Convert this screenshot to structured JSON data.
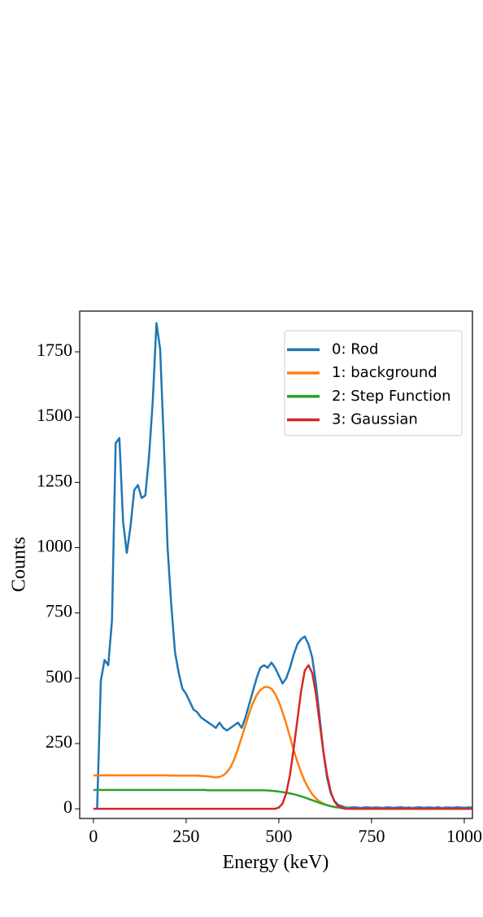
{
  "chart_data": {
    "type": "line",
    "xlabel": "Energy (keV)",
    "ylabel": "Counts",
    "x": [
      0,
      10,
      20,
      30,
      40,
      50,
      60,
      70,
      80,
      90,
      100,
      110,
      120,
      130,
      140,
      150,
      160,
      170,
      180,
      190,
      200,
      210,
      220,
      230,
      240,
      250,
      260,
      270,
      280,
      290,
      300,
      310,
      320,
      330,
      340,
      350,
      360,
      370,
      380,
      390,
      400,
      410,
      420,
      430,
      440,
      450,
      460,
      470,
      480,
      490,
      500,
      510,
      520,
      530,
      540,
      550,
      560,
      570,
      580,
      590,
      600,
      610,
      620,
      630,
      640,
      650,
      660,
      670,
      680,
      690,
      700,
      710,
      720,
      730,
      740,
      750,
      760,
      770,
      780,
      790,
      800,
      810,
      820,
      830,
      840,
      850,
      860,
      870,
      880,
      890,
      900,
      910,
      920,
      930,
      940,
      950,
      960,
      970,
      980,
      990,
      1000,
      1010,
      1020
    ],
    "series": [
      {
        "name": "0: Rod",
        "color": "#1f77b4",
        "values": [
          null,
          0,
          490,
          570,
          550,
          720,
          1400,
          1420,
          1100,
          980,
          1080,
          1220,
          1240,
          1190,
          1200,
          1350,
          1560,
          1860,
          1760,
          1400,
          1000,
          780,
          600,
          520,
          460,
          440,
          410,
          380,
          370,
          350,
          340,
          330,
          320,
          310,
          330,
          310,
          300,
          310,
          320,
          330,
          310,
          350,
          400,
          450,
          500,
          540,
          550,
          540,
          560,
          540,
          510,
          480,
          500,
          540,
          590,
          630,
          650,
          660,
          630,
          580,
          480,
          350,
          220,
          120,
          60,
          30,
          15,
          10,
          5,
          4,
          6,
          5,
          3,
          5,
          6,
          4,
          5,
          5,
          3,
          6,
          5,
          4,
          5,
          6,
          4,
          5,
          3,
          5,
          6,
          4,
          5,
          5,
          4,
          6,
          3,
          5,
          5,
          4,
          6,
          5,
          4,
          5,
          5
        ]
      },
      {
        "name": "1: background",
        "color": "#ff7f0e",
        "values": [
          128,
          128,
          128,
          128,
          128,
          128,
          128,
          128,
          128,
          128,
          128,
          128,
          128,
          128,
          128,
          128,
          128,
          128,
          128,
          128,
          128,
          127,
          127,
          127,
          127,
          127,
          127,
          127,
          127,
          126,
          125,
          124,
          122,
          120,
          122,
          128,
          140,
          160,
          190,
          230,
          275,
          320,
          365,
          405,
          435,
          455,
          465,
          467,
          460,
          440,
          410,
          370,
          325,
          275,
          225,
          180,
          140,
          105,
          78,
          56,
          40,
          28,
          20,
          14,
          10,
          7,
          5,
          3,
          2,
          1,
          0,
          0,
          0,
          0,
          0,
          0,
          0,
          0,
          0,
          0,
          0,
          0,
          0,
          0,
          0,
          0,
          0,
          0,
          0,
          0,
          0,
          0,
          0,
          0,
          0,
          0,
          0,
          0,
          0,
          0,
          0,
          0,
          0
        ]
      },
      {
        "name": "2: Step Function",
        "color": "#2ca02c",
        "values": [
          72,
          72,
          72,
          72,
          72,
          72,
          72,
          72,
          72,
          72,
          72,
          72,
          72,
          72,
          72,
          72,
          72,
          72,
          72,
          72,
          72,
          72,
          72,
          72,
          72,
          72,
          72,
          72,
          72,
          72,
          72,
          71,
          71,
          71,
          71,
          71,
          71,
          71,
          71,
          71,
          71,
          71,
          71,
          71,
          71,
          71,
          71,
          70,
          69,
          68,
          66,
          64,
          62,
          59,
          56,
          52,
          48,
          43,
          38,
          33,
          28,
          23,
          18,
          14,
          10,
          7,
          5,
          3,
          2,
          1,
          0,
          0,
          0,
          0,
          0,
          0,
          0,
          0,
          0,
          0,
          0,
          0,
          0,
          0,
          0,
          0,
          0,
          0,
          0,
          0,
          0,
          0,
          0,
          0,
          0,
          0,
          0,
          0,
          0,
          0,
          0,
          0,
          0
        ]
      },
      {
        "name": "3: Gaussian",
        "color": "#d62728",
        "values": [
          0,
          0,
          0,
          0,
          0,
          0,
          0,
          0,
          0,
          0,
          0,
          0,
          0,
          0,
          0,
          0,
          0,
          0,
          0,
          0,
          0,
          0,
          0,
          0,
          0,
          0,
          0,
          0,
          0,
          0,
          0,
          0,
          0,
          0,
          0,
          0,
          0,
          0,
          0,
          0,
          0,
          0,
          0,
          0,
          0,
          0,
          0,
          0,
          0,
          0,
          5,
          20,
          60,
          130,
          230,
          340,
          450,
          530,
          550,
          520,
          440,
          330,
          220,
          130,
          65,
          28,
          10,
          3,
          0,
          0,
          0,
          0,
          0,
          0,
          0,
          0,
          0,
          0,
          0,
          0,
          0,
          0,
          0,
          0,
          0,
          0,
          0,
          0,
          0,
          0,
          0,
          0,
          0,
          0,
          0,
          0,
          0,
          0,
          0,
          0,
          0,
          0,
          0
        ]
      }
    ],
    "xlim": [
      -37,
      1022
    ],
    "xticks": [
      0,
      250,
      500,
      750,
      1000
    ],
    "ylim": [
      -37,
      1906
    ],
    "yticks": [
      0,
      250,
      500,
      750,
      1000,
      1250,
      1500,
      1750
    ],
    "legend": "upper right",
    "grid": false
  }
}
